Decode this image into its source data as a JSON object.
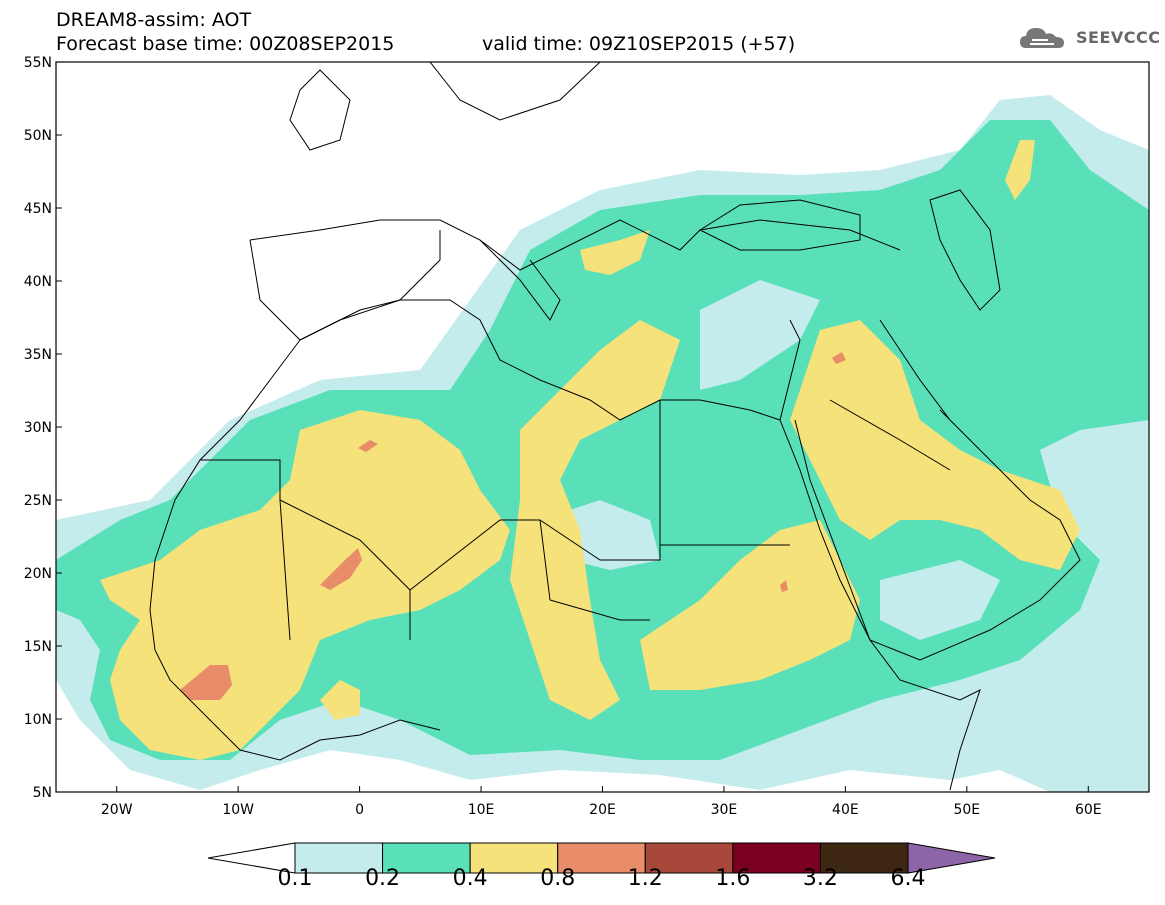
{
  "header": {
    "title": "DREAM8-assim: AOT",
    "base_time": "Forecast base time: 00Z08SEP2015",
    "valid_time": "valid time: 09Z10SEP2015 (+57)",
    "logo_text": "SEEVCCC"
  },
  "map": {
    "lon_range": [
      -25,
      65
    ],
    "lat_range": [
      5,
      55
    ],
    "lat_labels": [
      "5N",
      "10N",
      "15N",
      "20N",
      "25N",
      "30N",
      "35N",
      "40N",
      "45N",
      "50N",
      "55N"
    ],
    "lon_labels": [
      "20W",
      "10W",
      "0",
      "10E",
      "20E",
      "30E",
      "40E",
      "50E",
      "60E"
    ],
    "lat_values": [
      5,
      10,
      15,
      20,
      25,
      30,
      35,
      40,
      45,
      50,
      55
    ],
    "lon_values": [
      -20,
      -10,
      0,
      10,
      20,
      30,
      40,
      50,
      60
    ]
  },
  "colorbar": {
    "labels": [
      "0.1",
      "0.2",
      "0.4",
      "0.8",
      "1.2",
      "1.6",
      "3.2",
      "6.4"
    ],
    "colors": [
      "#ffffff",
      "#c4ecec",
      "#5ae0b8",
      "#f5e27a",
      "#e88c6a",
      "#a8483a",
      "#7a0020",
      "#3d2612",
      "#8c64a8"
    ]
  },
  "field_colors": {
    "level_0_1": "#c4ecec",
    "level_0_2": "#5ae0b8",
    "level_0_4": "#f5e27a",
    "level_0_8": "#e88c6a"
  }
}
